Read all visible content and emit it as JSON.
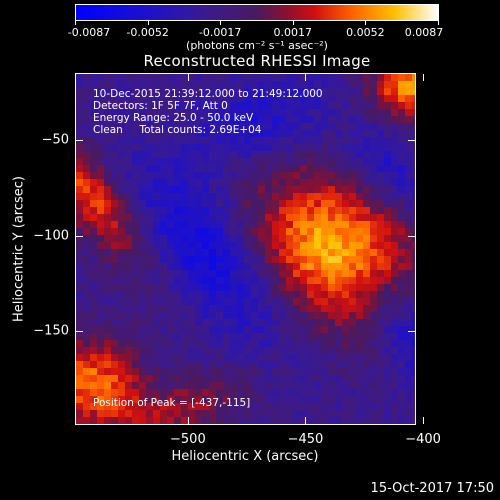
{
  "chart_data": {
    "type": "heatmap",
    "title": "Reconstructed RHESSI Image",
    "xlabel": "Heliocentric X (arcsec)",
    "ylabel": "Heliocentric Y (arcsec)",
    "xlim": [
      -548,
      -403
    ],
    "ylim": [
      -199,
      -15
    ],
    "x_ticks": [
      -500,
      -450,
      -400
    ],
    "y_ticks": [
      -50,
      -100,
      -150
    ],
    "colorbar": {
      "range": [
        -0.0087,
        0.0087
      ],
      "tick_labels": [
        "-0.0087",
        "-0.0052",
        "-0.0017",
        "0.0017",
        "0.0052",
        "0.0087"
      ],
      "units": "(photons cm⁻² s⁻¹ asec⁻²)"
    },
    "annotations": {
      "time_range": "10-Dec-2015 21:39:12.000 to 21:49:12.000",
      "detectors": "Detectors: 1F 5F 7F, Att 0",
      "energy_range": "Energy Range: 25.0 - 50.0 keV",
      "clean_counts": "Clean     Total counts: 2.69E+04",
      "peak_position": "Position of Peak = [-437,-115]"
    },
    "peak": {
      "x": -437,
      "y": -115
    },
    "components": [
      {
        "x": -437,
        "y": -108,
        "sx": 22,
        "sy": 30,
        "amp": 0.0087
      },
      {
        "x": -545,
        "y": -75,
        "sx": 9,
        "sy": 32,
        "amp": 0.0062
      },
      {
        "x": -540,
        "y": -178,
        "sx": 15,
        "sy": 18,
        "amp": 0.007
      },
      {
        "x": -406,
        "y": -22,
        "sx": 12,
        "sy": 12,
        "amp": 0.0075
      },
      {
        "x": -500,
        "y": -190,
        "sx": 20,
        "sy": 10,
        "amp": 0.0035
      }
    ],
    "negative_lobes": [
      {
        "x": -490,
        "y": -110,
        "sx": 14,
        "sy": 34,
        "amp": -0.0045
      },
      {
        "x": -470,
        "y": -40,
        "sx": 22,
        "sy": 14,
        "amp": -0.003
      },
      {
        "x": -405,
        "y": -150,
        "sx": 10,
        "sy": 26,
        "amp": -0.004
      },
      {
        "x": -415,
        "y": -65,
        "sx": 10,
        "sy": 18,
        "amp": -0.003
      }
    ],
    "background": -0.0022
  },
  "footer": {
    "timestamp": "15-Oct-2017 17:50"
  }
}
